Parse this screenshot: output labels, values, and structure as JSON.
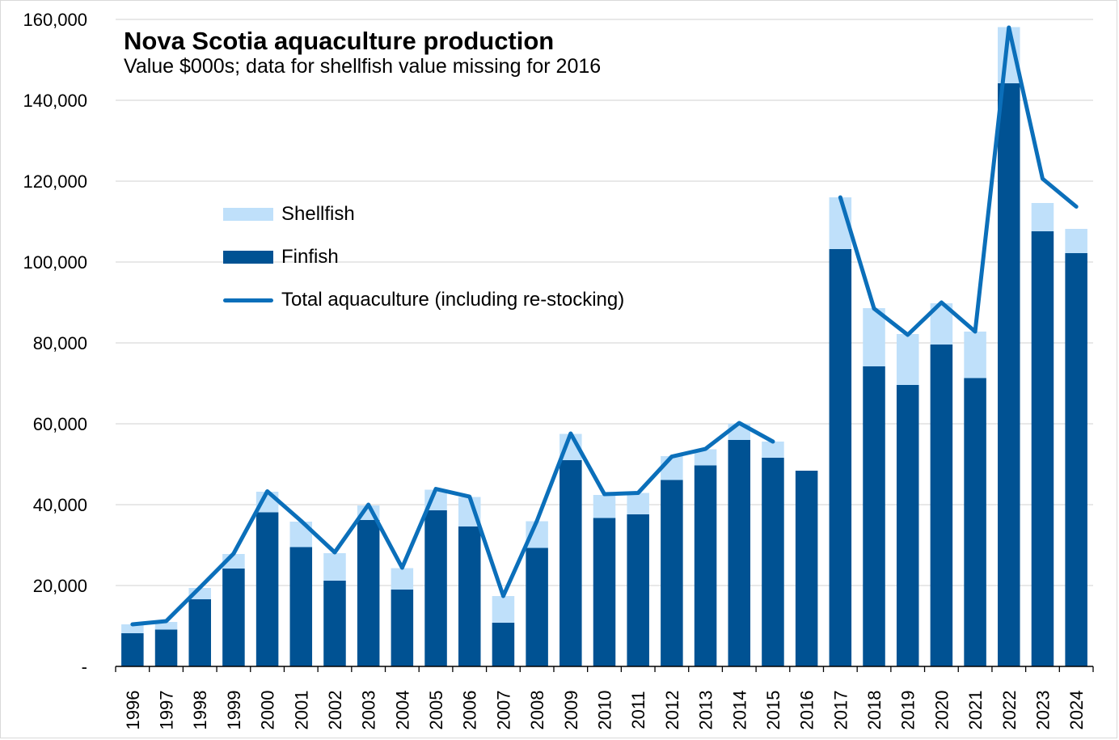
{
  "chart_data": {
    "type": "bar",
    "stacked": true,
    "title": "Nova Scotia aquaculture production",
    "subtitle": "Value $000s; data for shellfish value missing for 2016",
    "xlabel": "",
    "ylabel": "",
    "ylim": [
      0,
      160000
    ],
    "yticks": [
      0,
      20000,
      40000,
      60000,
      80000,
      100000,
      120000,
      140000,
      160000
    ],
    "ytick_labels": [
      "-",
      "20,000",
      "40,000",
      "60,000",
      "80,000",
      "100,000",
      "120,000",
      "140,000",
      "160,000"
    ],
    "grid": true,
    "legend_position": "upper-left",
    "categories": [
      "1996",
      "1997",
      "1998",
      "1999",
      "2000",
      "2001",
      "2002",
      "2003",
      "2004",
      "2005",
      "2006",
      "2007",
      "2008",
      "2009",
      "2010",
      "2011",
      "2012",
      "2013",
      "2014",
      "2015",
      "2016",
      "2017",
      "2018",
      "2019",
      "2020",
      "2021",
      "2022",
      "2023",
      "2024"
    ],
    "series": [
      {
        "name": "Finfish",
        "kind": "bar",
        "color": "#005293",
        "values": [
          8200,
          9100,
          16600,
          24200,
          38100,
          29500,
          21200,
          36200,
          19000,
          38600,
          34600,
          10800,
          29300,
          51000,
          36700,
          37600,
          46100,
          49700,
          56000,
          51600,
          48400,
          103200,
          74200,
          69600,
          79600,
          71300,
          144200,
          107600,
          102200
        ]
      },
      {
        "name": "Shellfish",
        "kind": "bar",
        "color": "#bfe0fa",
        "values": [
          2200,
          1900,
          2800,
          3600,
          5100,
          6300,
          6800,
          3600,
          5300,
          5100,
          7300,
          6600,
          6600,
          6500,
          5700,
          5300,
          5900,
          4000,
          4000,
          4000,
          null,
          12800,
          14400,
          12600,
          10200,
          11500,
          13900,
          7000,
          6000
        ]
      },
      {
        "name": "Total aquaculture (including re-stocking)",
        "kind": "line",
        "color": "#0b6fba",
        "values": [
          10400,
          11200,
          19500,
          27900,
          43300,
          36000,
          28200,
          40000,
          24400,
          43900,
          42000,
          17400,
          36000,
          57600,
          42600,
          42900,
          51900,
          53800,
          60200,
          55600,
          null,
          116000,
          88500,
          82000,
          90000,
          82800,
          158000,
          120600,
          113700
        ]
      }
    ]
  }
}
